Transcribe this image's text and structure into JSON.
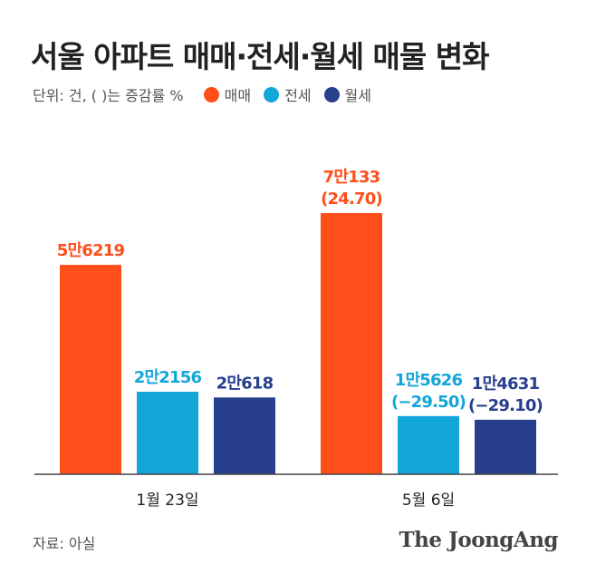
{
  "title": "서울 아파트 매매·전세·월세 매물 변화",
  "unit_note": "단위: 건, ( )는 증감률 %",
  "source": "자료: 아실",
  "brand": "The JoongAng",
  "chart_data": {
    "type": "bar",
    "categories": [
      "1월 23일",
      "5월 6일"
    ],
    "series": [
      {
        "name": "매매",
        "color": "#ff4e1a",
        "values": [
          56219,
          70133
        ],
        "labels": [
          "5만6219",
          "7만133"
        ],
        "change_labels": [
          "",
          "(24.70)"
        ]
      },
      {
        "name": "전세",
        "color": "#13a6d9",
        "values": [
          22156,
          15626
        ],
        "labels": [
          "2만2156",
          "1만5626"
        ],
        "change_labels": [
          "",
          "(−29.50)"
        ]
      },
      {
        "name": "월세",
        "color": "#283f8c",
        "values": [
          20618,
          14631
        ],
        "labels": [
          "2만618",
          "1만4631"
        ],
        "change_labels": [
          "",
          "(−29.10)"
        ]
      }
    ],
    "ylim": [
      0,
      84000
    ],
    "grid": false,
    "legend": "top-left"
  }
}
